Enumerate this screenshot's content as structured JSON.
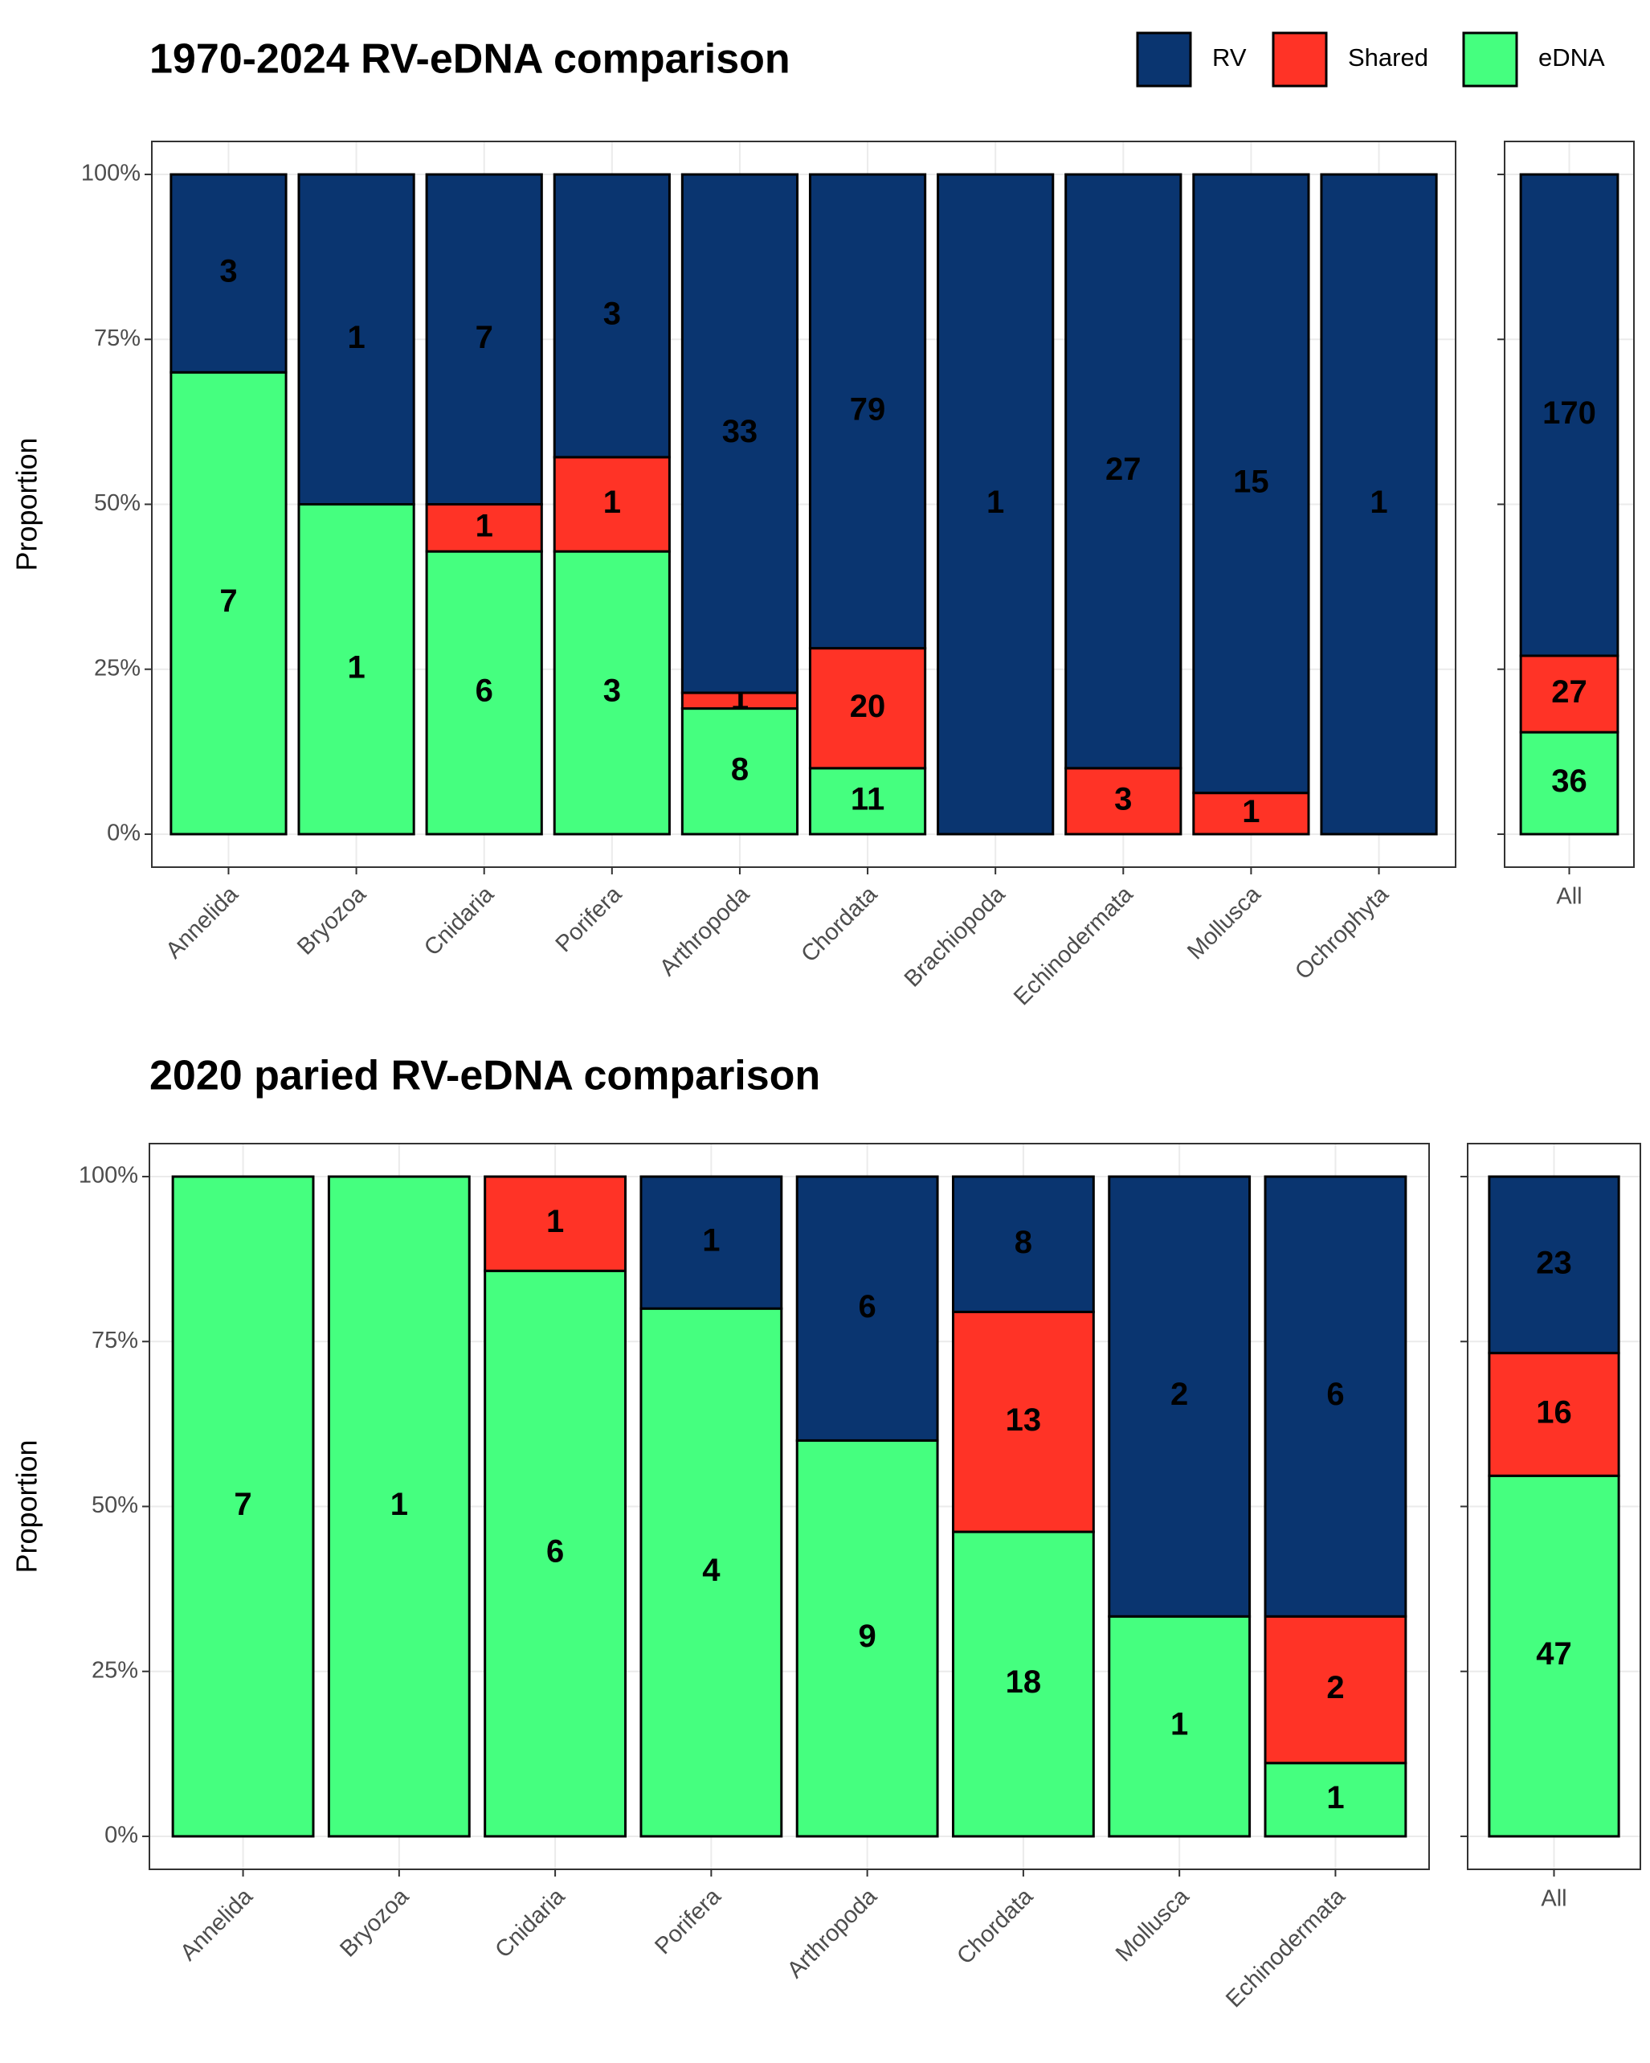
{
  "chart_data": [
    {
      "type": "bar",
      "stack": "percent",
      "title": "1970-2024 RV-eDNA comparison",
      "ylabel": "Proportion",
      "legend": "top-right",
      "grid": true,
      "panels": [
        10,
        1
      ],
      "categories": [
        "Annelida",
        "Bryozoa",
        "Cnidaria",
        "Porifera",
        "Arthropoda",
        "Chordata",
        "Brachiopoda",
        "Echinodermata",
        "Mollusca",
        "Ochrophyta",
        "All"
      ],
      "series": [
        {
          "name": "RV",
          "color": "#0a3570",
          "values": [
            3,
            1,
            7,
            3,
            33,
            79,
            1,
            27,
            15,
            1,
            170
          ]
        },
        {
          "name": "Shared",
          "color": "#ff3326",
          "values": [
            0,
            0,
            1,
            1,
            1,
            20,
            0,
            3,
            1,
            0,
            27
          ]
        },
        {
          "name": "eDNA",
          "color": "#45ff7f",
          "values": [
            7,
            1,
            6,
            3,
            8,
            11,
            0,
            0,
            0,
            0,
            36
          ]
        }
      ],
      "ylim": [
        0,
        100
      ],
      "yticks": [
        {
          "value": 0,
          "label": "0%"
        },
        {
          "value": 25,
          "label": "25%"
        },
        {
          "value": 50,
          "label": "50%"
        },
        {
          "value": 75,
          "label": "75%"
        },
        {
          "value": 100,
          "label": "100%"
        }
      ]
    },
    {
      "type": "bar",
      "stack": "percent",
      "title": "2020 paried RV-eDNA comparison",
      "ylabel": "Proportion",
      "grid": true,
      "panels": [
        8,
        1
      ],
      "categories": [
        "Annelida",
        "Bryozoa",
        "Cnidaria",
        "Porifera",
        "Arthropoda",
        "Chordata",
        "Mollusca",
        "Echinodermata",
        "All"
      ],
      "series": [
        {
          "color": "#0a3570",
          "values": [
            0,
            0,
            0,
            1,
            6,
            8,
            2,
            6,
            23
          ]
        },
        {
          "color": "#ff3326",
          "values": [
            0,
            0,
            1,
            0,
            0,
            13,
            0,
            2,
            16
          ]
        },
        {
          "color": "#45ff7f",
          "values": [
            7,
            1,
            6,
            4,
            9,
            18,
            1,
            1,
            47
          ]
        }
      ],
      "ylim": [
        0,
        100
      ],
      "yticks": [
        {
          "value": 0,
          "label": "0%"
        },
        {
          "value": 25,
          "label": "25%"
        },
        {
          "value": 50,
          "label": "50%"
        },
        {
          "value": 75,
          "label": "75%"
        },
        {
          "value": 100,
          "label": "100%"
        }
      ]
    }
  ]
}
